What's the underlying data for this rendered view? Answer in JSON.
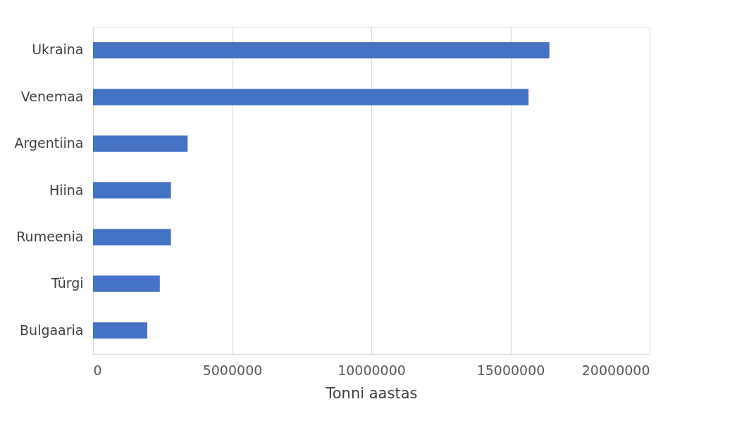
{
  "chart_data": {
    "type": "bar",
    "orientation": "horizontal",
    "xlabel": "Tonni aastas",
    "categories": [
      "Ukraina",
      "Venemaa",
      "Argentiina",
      "Hiina",
      "Rumeenia",
      "Türgi",
      "Bulgaaria"
    ],
    "values": [
      16400000,
      15650000,
      3400000,
      2800000,
      2800000,
      2400000,
      1950000
    ],
    "color": "#4472c4",
    "xlim": [
      0,
      20000000
    ],
    "xticks": [
      0,
      5000000,
      10000000,
      15000000,
      20000000
    ],
    "grid": "x"
  }
}
